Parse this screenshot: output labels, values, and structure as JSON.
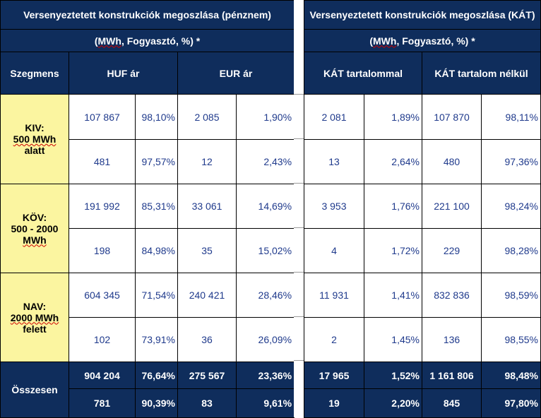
{
  "left": {
    "title": "Versenyeztetett konstrukciók megoszlása (pénznem)",
    "unit_pre": "(",
    "unit_word": "MWh",
    "unit_post": ", Fogyasztó, %) *",
    "col_segment": "Szegmens",
    "col_a": "HUF ár",
    "col_b": "EUR ár"
  },
  "right": {
    "title": "Versenyeztetett konstrukciók megoszlása (KÁT)",
    "unit_pre": "(",
    "unit_word": "MWh",
    "unit_post": ", Fogyasztó, %) *",
    "col_a": "KÁT tartalommal",
    "col_b": "KÁT tartalom nélkül"
  },
  "segments": [
    {
      "line1": "KIV:",
      "line2": "500 MWh",
      "line3": "alatt",
      "rows": [
        [
          "107 867",
          "98,10%",
          "2 085",
          "1,90%",
          "2 081",
          "1,89%",
          "107 870",
          "98,11%"
        ],
        [
          "481",
          "97,57%",
          "12",
          "2,43%",
          "13",
          "2,64%",
          "480",
          "97,36%"
        ]
      ]
    },
    {
      "line1": "KÖV:",
      "line2": "500 - 2000",
      "line3": "MWh",
      "rows": [
        [
          "191 992",
          "85,31%",
          "33 061",
          "14,69%",
          "3 953",
          "1,76%",
          "221 100",
          "98,24%"
        ],
        [
          "198",
          "84,98%",
          "35",
          "15,02%",
          "4",
          "1,72%",
          "229",
          "98,28%"
        ]
      ]
    },
    {
      "line1": "NAV:",
      "line2": "2000 MWh",
      "line3": "felett",
      "rows": [
        [
          "604 345",
          "71,54%",
          "240 421",
          "28,46%",
          "11 931",
          "1,41%",
          "832 836",
          "98,59%"
        ],
        [
          "102",
          "73,91%",
          "36",
          "26,09%",
          "2",
          "1,45%",
          "136",
          "98,55%"
        ]
      ]
    }
  ],
  "total": {
    "label": "Összesen",
    "rows": [
      [
        "904 204",
        "76,64%",
        "275 567",
        "23,36%",
        "17 965",
        "1,52%",
        "1 161 806",
        "98,48%"
      ],
      [
        "781",
        "90,39%",
        "83",
        "9,61%",
        "19",
        "2,20%",
        "845",
        "97,80%"
      ]
    ]
  },
  "colors": {
    "header_bg": "#0f2d5c",
    "segment_bg": "#fbf5a0",
    "value_text": "#1f3a8c"
  }
}
